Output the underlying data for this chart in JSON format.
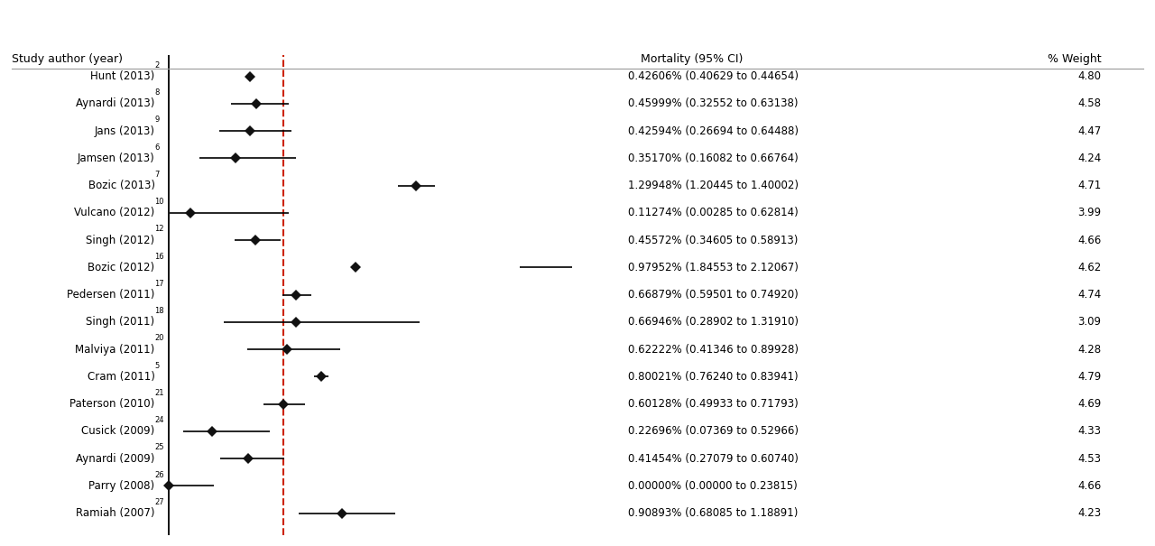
{
  "studies": [
    {
      "author": "Hunt (2013)",
      "superscript": "2",
      "point": 0.42606,
      "ci_low": 0.40629,
      "ci_high": 0.44654,
      "weight": 4.8,
      "ci_text": "0.42606% (0.40629 to 0.44654)"
    },
    {
      "author": "Aynardi (2013)",
      "superscript": "8",
      "point": 0.45999,
      "ci_low": 0.32552,
      "ci_high": 0.63138,
      "weight": 4.58,
      "ci_text": "0.45999% (0.32552 to 0.63138)"
    },
    {
      "author": "Jans (2013)",
      "superscript": "9",
      "point": 0.42594,
      "ci_low": 0.26694,
      "ci_high": 0.64488,
      "weight": 4.47,
      "ci_text": "0.42594% (0.26694 to 0.64488)"
    },
    {
      "author": "Jamsen (2013)",
      "superscript": "6",
      "point": 0.3517,
      "ci_low": 0.16082,
      "ci_high": 0.66764,
      "weight": 4.24,
      "ci_text": "0.35170% (0.16082 to 0.66764)"
    },
    {
      "author": "Bozic (2013)",
      "superscript": "7",
      "point": 1.29948,
      "ci_low": 1.20445,
      "ci_high": 1.40002,
      "weight": 4.71,
      "ci_text": "1.29948% (1.20445 to 1.40002)"
    },
    {
      "author": "Vulcano (2012)",
      "superscript": "10",
      "point": 0.11274,
      "ci_low": 0.00285,
      "ci_high": 0.62814,
      "weight": 3.99,
      "ci_text": "0.11274% (0.00285 to 0.62814)"
    },
    {
      "author": "Singh (2012)",
      "superscript": "12",
      "point": 0.45572,
      "ci_low": 0.34605,
      "ci_high": 0.58913,
      "weight": 4.66,
      "ci_text": "0.45572% (0.34605 to 0.58913)"
    },
    {
      "author": "Bozic (2012)",
      "superscript": "16",
      "point": 0.97952,
      "ci_low": 1.84553,
      "ci_high": 2.12067,
      "weight": 4.62,
      "ci_text": "0.97952% (1.84553 to 2.12067)"
    },
    {
      "author": "Pedersen (2011)",
      "superscript": "17",
      "point": 0.66879,
      "ci_low": 0.59501,
      "ci_high": 0.7492,
      "weight": 4.74,
      "ci_text": "0.66879% (0.59501 to 0.74920)"
    },
    {
      "author": "Singh (2011)",
      "superscript": "18",
      "point": 0.66946,
      "ci_low": 0.28902,
      "ci_high": 1.3191,
      "weight": 3.09,
      "ci_text": "0.66946% (0.28902 to 1.31910)"
    },
    {
      "author": "Malviya (2011)",
      "superscript": "20",
      "point": 0.62222,
      "ci_low": 0.41346,
      "ci_high": 0.89928,
      "weight": 4.28,
      "ci_text": "0.62222% (0.41346 to 0.89928)"
    },
    {
      "author": "Cram (2011)",
      "superscript": "5",
      "point": 0.80021,
      "ci_low": 0.7624,
      "ci_high": 0.83941,
      "weight": 4.79,
      "ci_text": "0.80021% (0.76240 to 0.83941)"
    },
    {
      "author": "Paterson (2010)",
      "superscript": "21",
      "point": 0.60128,
      "ci_low": 0.49933,
      "ci_high": 0.71793,
      "weight": 4.69,
      "ci_text": "0.60128% (0.49933 to 0.71793)"
    },
    {
      "author": "Cusick (2009)",
      "superscript": "24",
      "point": 0.22696,
      "ci_low": 0.07369,
      "ci_high": 0.52966,
      "weight": 4.33,
      "ci_text": "0.22696% (0.07369 to 0.52966)"
    },
    {
      "author": "Aynardi (2009)",
      "superscript": "25",
      "point": 0.41454,
      "ci_low": 0.27079,
      "ci_high": 0.6074,
      "weight": 4.53,
      "ci_text": "0.41454% (0.27079 to 0.60740)"
    },
    {
      "author": "Parry (2008)",
      "superscript": "26",
      "point": 0.0,
      "ci_low": 0.0,
      "ci_high": 0.23815,
      "weight": 4.66,
      "ci_text": "0.00000% (0.00000 to 0.23815)"
    },
    {
      "author": "Ramiah (2007)",
      "superscript": "27",
      "point": 0.90893,
      "ci_low": 0.68085,
      "ci_high": 1.18891,
      "weight": 4.23,
      "ci_text": "0.90893% (0.68085 to 1.18891)"
    }
  ],
  "dashed_line_x": 0.6,
  "header_author": "Study author (year)",
  "header_mortality": "Mortality (95% CI)",
  "header_weight": "% Weight",
  "background_color": "#ffffff",
  "line_color": "#000000",
  "dashed_color": "#cc2200",
  "marker_color": "#111111",
  "marker_size": 6,
  "ci_linewidth": 1.2,
  "xlim_left": -0.05,
  "xlim_right": 2.35,
  "author_fontsize": 8.5,
  "ci_fontsize": 8.5,
  "header_fontsize": 9.0
}
